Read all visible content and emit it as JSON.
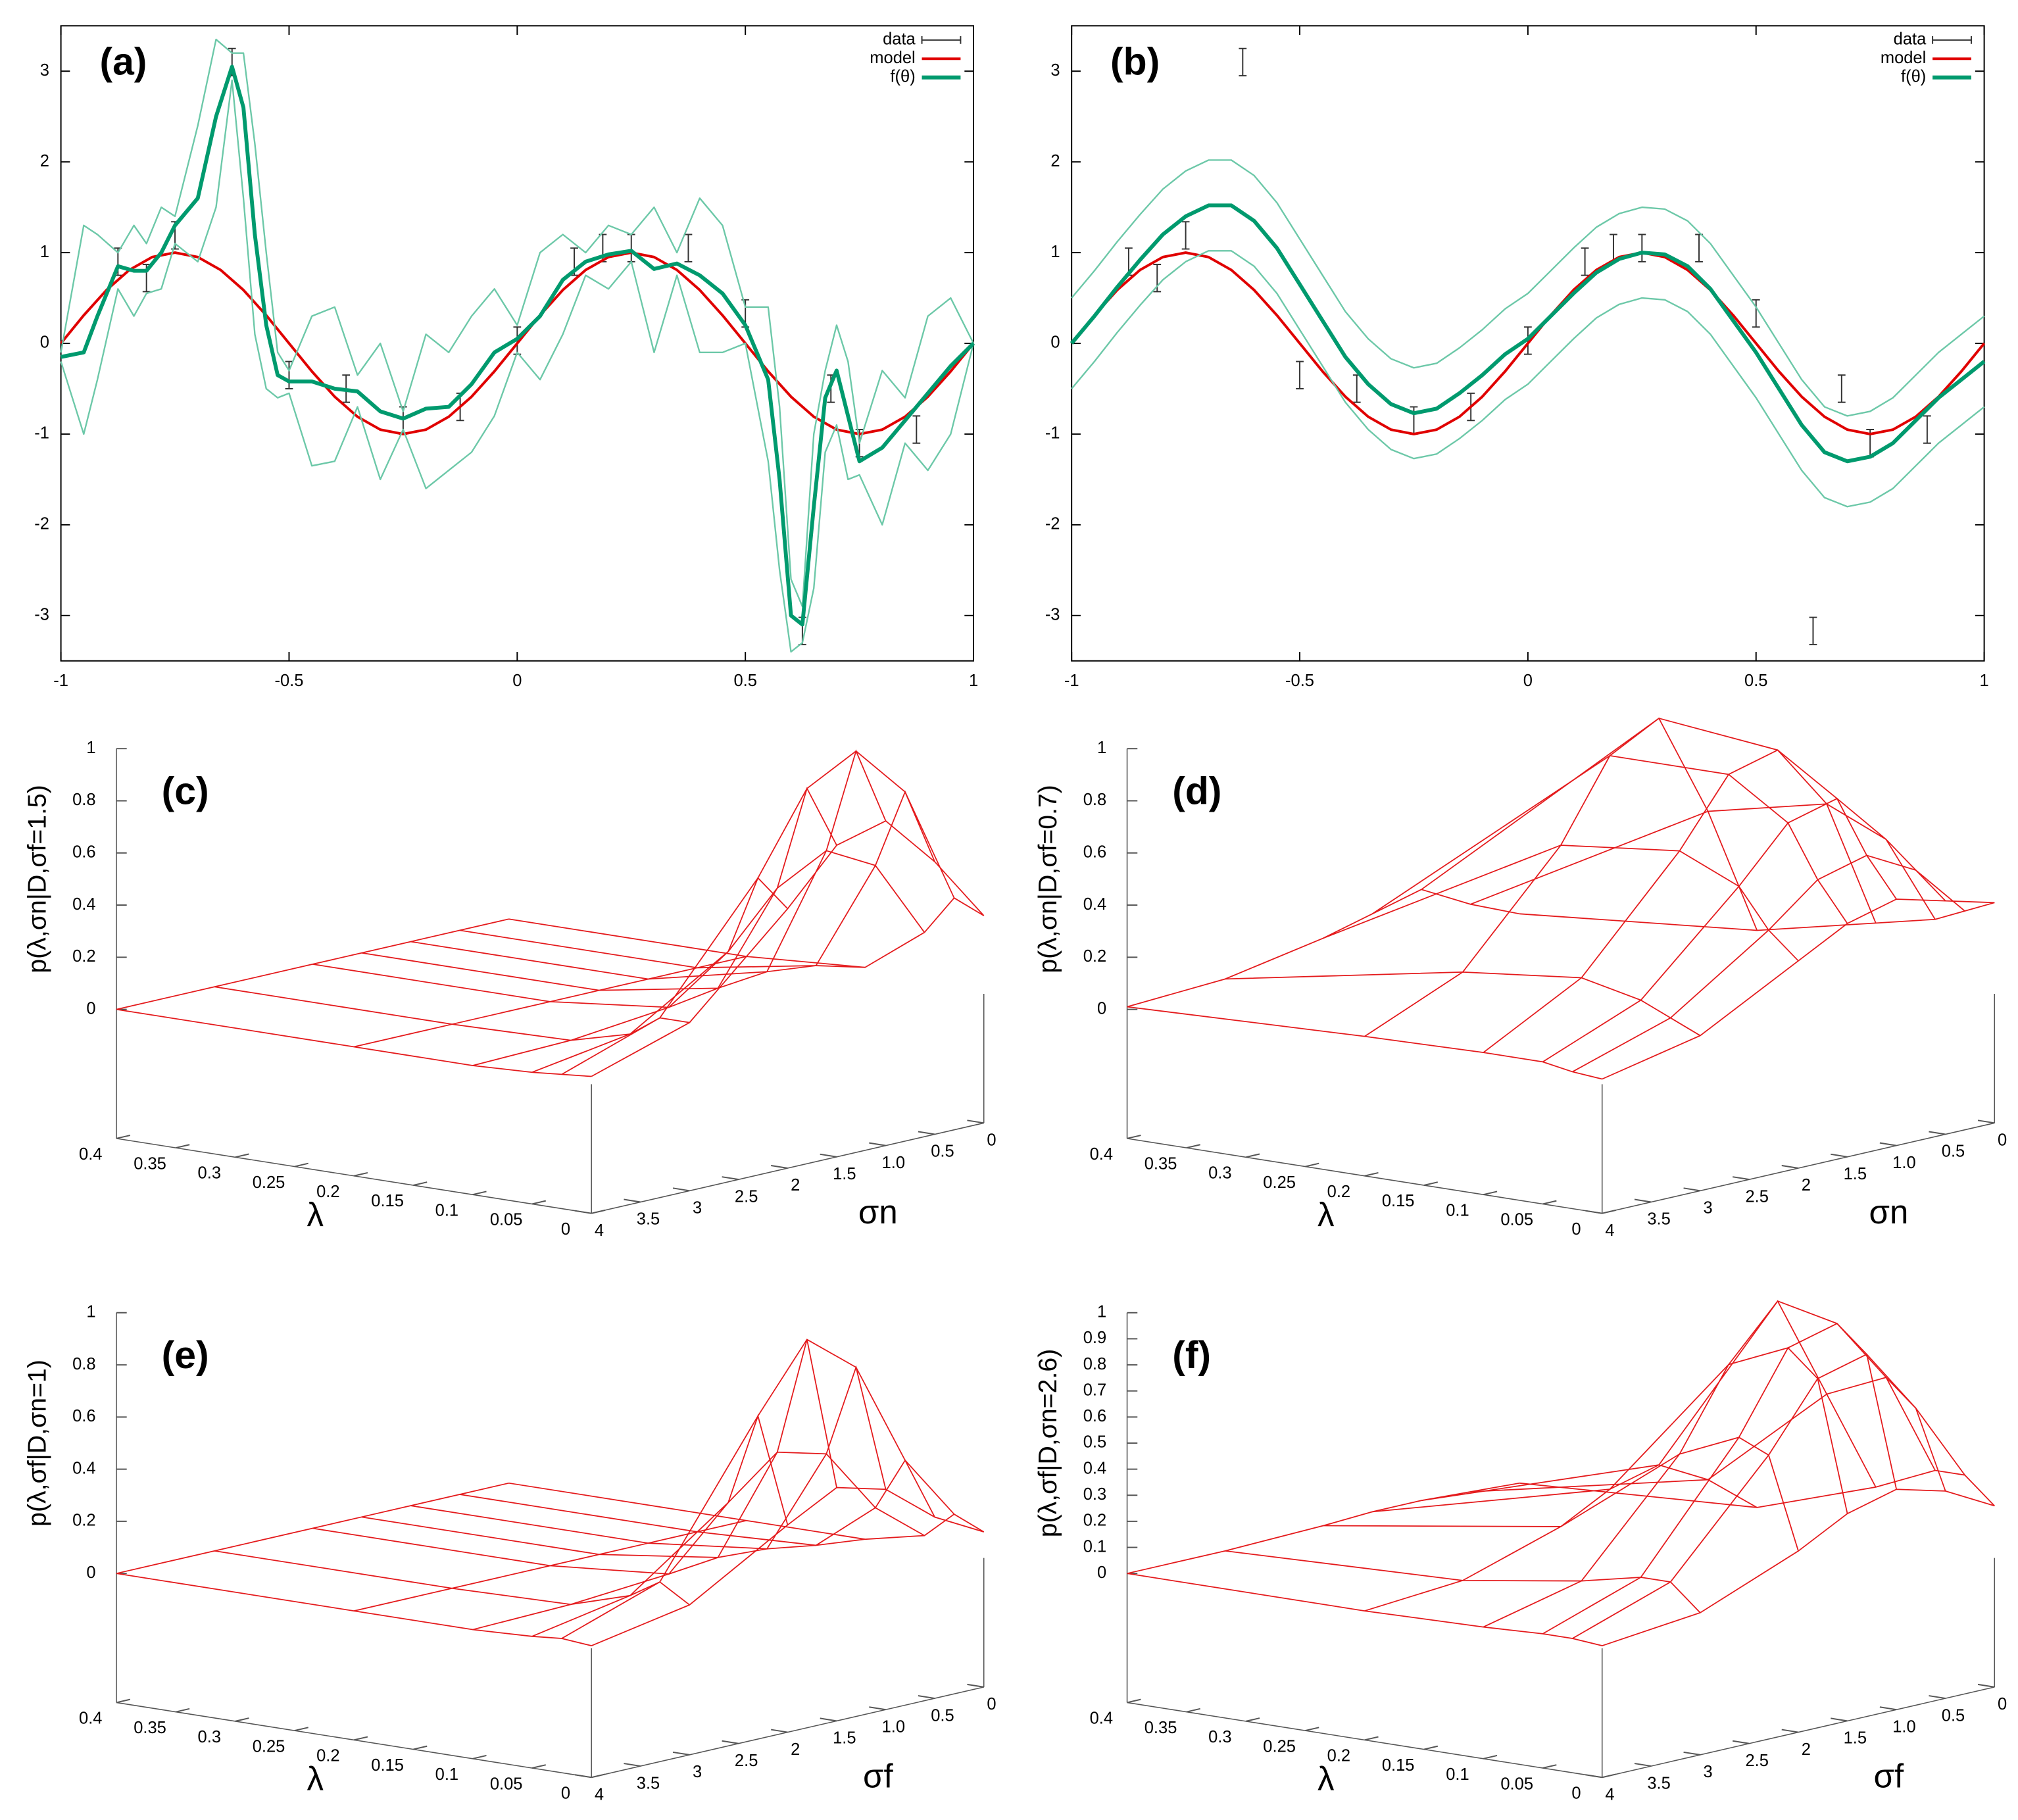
{
  "chart_data": [
    {
      "type": "line",
      "label": "(a)",
      "xlim": [
        -1,
        1
      ],
      "ylim": [
        -3.5,
        3.5
      ],
      "xticks": [
        -1,
        -0.5,
        0,
        0.5,
        1
      ],
      "yticks": [
        -3,
        -2,
        -1,
        0,
        1,
        2,
        3
      ],
      "series": [
        {
          "name": "data",
          "color": "#333333",
          "error": 0.15,
          "x": [
            -0.875,
            -0.8125,
            -0.75,
            -0.625,
            -0.5,
            -0.375,
            -0.25,
            -0.125,
            0,
            0.125,
            0.1875,
            0.25,
            0.375,
            0.5,
            0.625,
            0.6875,
            0.75,
            0.875
          ],
          "values": [
            0.9,
            0.72,
            1.19,
            3.1,
            -0.35,
            -0.5,
            -0.85,
            -0.7,
            0.03,
            0.9,
            1.05,
            1.05,
            1.05,
            0.33,
            -3.17,
            -0.5,
            -1.1,
            -0.95
          ]
        },
        {
          "name": "model",
          "color": "#e00000",
          "x": [
            -1,
            -0.95,
            -0.9,
            -0.85,
            -0.8,
            -0.75,
            -0.7,
            -0.65,
            -0.6,
            -0.55,
            -0.5,
            -0.45,
            -0.4,
            -0.35,
            -0.3,
            -0.25,
            -0.2,
            -0.15,
            -0.1,
            -0.05,
            0,
            0.05,
            0.1,
            0.15,
            0.2,
            0.25,
            0.3,
            0.35,
            0.4,
            0.45,
            0.5,
            0.55,
            0.6,
            0.65,
            0.7,
            0.75,
            0.8,
            0.85,
            0.9,
            0.95,
            1
          ],
          "values": [
            0,
            0.309,
            0.588,
            0.809,
            0.951,
            1,
            0.951,
            0.809,
            0.588,
            0.309,
            0,
            -0.309,
            -0.588,
            -0.809,
            -0.951,
            -1,
            -0.951,
            -0.809,
            -0.588,
            -0.309,
            0,
            0.309,
            0.588,
            0.809,
            0.951,
            1,
            0.951,
            0.809,
            0.588,
            0.309,
            0,
            -0.309,
            -0.588,
            -0.809,
            -0.951,
            -1,
            -0.951,
            -0.809,
            -0.588,
            -0.309,
            0
          ]
        },
        {
          "name": "f(θ)",
          "color": "#009a6e",
          "band_color": "#6cc8a8",
          "x": [
            -1,
            -0.95,
            -0.92,
            -0.875,
            -0.84,
            -0.8125,
            -0.78,
            -0.75,
            -0.7,
            -0.66,
            -0.625,
            -0.6,
            -0.575,
            -0.55,
            -0.525,
            -0.5,
            -0.45,
            -0.4,
            -0.35,
            -0.3,
            -0.25,
            -0.2,
            -0.15,
            -0.1,
            -0.05,
            0,
            0.05,
            0.1,
            0.15,
            0.2,
            0.25,
            0.3,
            0.35,
            0.4,
            0.45,
            0.5,
            0.55,
            0.575,
            0.6,
            0.625,
            0.65,
            0.675,
            0.7,
            0.725,
            0.75,
            0.8,
            0.85,
            0.9,
            0.95,
            1
          ],
          "values": [
            -0.15,
            -0.1,
            0.3,
            0.85,
            0.8,
            0.8,
            1.0,
            1.3,
            1.6,
            2.5,
            3.05,
            2.6,
            1.2,
            0.2,
            -0.35,
            -0.42,
            -0.42,
            -0.5,
            -0.53,
            -0.75,
            -0.83,
            -0.72,
            -0.7,
            -0.45,
            -0.1,
            0.05,
            0.3,
            0.7,
            0.9,
            0.98,
            1.02,
            0.82,
            0.88,
            0.75,
            0.55,
            0.2,
            -0.4,
            -1.5,
            -3.0,
            -3.1,
            -1.8,
            -0.6,
            -0.3,
            -0.8,
            -1.3,
            -1.15,
            -0.85,
            -0.55,
            -0.25,
            0
          ],
          "upper": [
            -0.1,
            1.3,
            1.2,
            1.0,
            1.3,
            1.1,
            1.5,
            1.4,
            2.4,
            3.35,
            3.2,
            3.2,
            2.2,
            1.0,
            -0.1,
            -0.3,
            0.3,
            0.4,
            -0.35,
            0.0,
            -0.75,
            0.1,
            -0.1,
            0.3,
            0.6,
            0.2,
            1.0,
            1.2,
            1.0,
            1.3,
            1.2,
            1.5,
            1.0,
            1.6,
            1.3,
            0.4,
            0.4,
            -0.7,
            -2.6,
            -2.9,
            -1.0,
            -0.3,
            0.2,
            -0.2,
            -1.1,
            -0.3,
            -0.6,
            0.3,
            0.5,
            0
          ],
          "lower": [
            -0.2,
            -1.0,
            -0.4,
            0.6,
            0.3,
            0.55,
            0.6,
            1.1,
            0.9,
            1.5,
            2.9,
            1.6,
            0.1,
            -0.5,
            -0.6,
            -0.55,
            -1.35,
            -1.3,
            -0.7,
            -1.5,
            -0.95,
            -1.6,
            -1.4,
            -1.2,
            -0.8,
            -0.1,
            -0.4,
            0.1,
            0.75,
            0.6,
            0.9,
            -0.1,
            0.75,
            -0.1,
            -0.1,
            0.0,
            -1.3,
            -2.5,
            -3.4,
            -3.3,
            -2.7,
            -1.2,
            -0.9,
            -1.5,
            -1.45,
            -2.0,
            -1.1,
            -1.4,
            -1.0,
            0
          ]
        }
      ]
    },
    {
      "type": "line",
      "label": "(b)",
      "xlim": [
        -1,
        1
      ],
      "ylim": [
        -3.5,
        3.5
      ],
      "xticks": [
        -1,
        -0.5,
        0,
        0.5,
        1
      ],
      "yticks": [
        -3,
        -2,
        -1,
        0,
        1,
        2,
        3
      ],
      "series": [
        {
          "name": "data",
          "color": "#333333",
          "error": 0.15,
          "x": [
            -0.875,
            -0.8125,
            -0.75,
            -0.625,
            -0.5,
            -0.375,
            -0.25,
            -0.125,
            0,
            0.125,
            0.1875,
            0.25,
            0.375,
            0.5,
            0.625,
            0.6875,
            0.75,
            0.875
          ],
          "values": [
            0.9,
            0.72,
            1.19,
            3.1,
            -0.35,
            -0.5,
            -0.85,
            -0.7,
            0.03,
            0.9,
            1.05,
            1.05,
            1.05,
            0.33,
            -3.17,
            -0.5,
            -1.1,
            -0.95
          ]
        },
        {
          "name": "model",
          "color": "#e00000",
          "x": [
            -1,
            -0.95,
            -0.9,
            -0.85,
            -0.8,
            -0.75,
            -0.7,
            -0.65,
            -0.6,
            -0.55,
            -0.5,
            -0.45,
            -0.4,
            -0.35,
            -0.3,
            -0.25,
            -0.2,
            -0.15,
            -0.1,
            -0.05,
            0,
            0.05,
            0.1,
            0.15,
            0.2,
            0.25,
            0.3,
            0.35,
            0.4,
            0.45,
            0.5,
            0.55,
            0.6,
            0.65,
            0.7,
            0.75,
            0.8,
            0.85,
            0.9,
            0.95,
            1
          ],
          "values": [
            0,
            0.309,
            0.588,
            0.809,
            0.951,
            1,
            0.951,
            0.809,
            0.588,
            0.309,
            0,
            -0.309,
            -0.588,
            -0.809,
            -0.951,
            -1,
            -0.951,
            -0.809,
            -0.588,
            -0.309,
            0,
            0.309,
            0.588,
            0.809,
            0.951,
            1,
            0.951,
            0.809,
            0.588,
            0.309,
            0,
            -0.309,
            -0.588,
            -0.809,
            -0.951,
            -1,
            -0.951,
            -0.809,
            -0.588,
            -0.309,
            0
          ]
        },
        {
          "name": "f(θ)",
          "color": "#009a6e",
          "band_color": "#6cc8a8",
          "x": [
            -1,
            -0.95,
            -0.9,
            -0.85,
            -0.8,
            -0.75,
            -0.7,
            -0.65,
            -0.6,
            -0.55,
            -0.5,
            -0.45,
            -0.4,
            -0.35,
            -0.3,
            -0.25,
            -0.2,
            -0.15,
            -0.1,
            -0.05,
            0,
            0.05,
            0.1,
            0.15,
            0.2,
            0.25,
            0.3,
            0.35,
            0.4,
            0.45,
            0.5,
            0.55,
            0.6,
            0.65,
            0.7,
            0.75,
            0.8,
            0.85,
            0.9,
            0.95,
            1
          ],
          "values": [
            0,
            0.3,
            0.62,
            0.92,
            1.2,
            1.4,
            1.52,
            1.52,
            1.35,
            1.05,
            0.65,
            0.25,
            -0.15,
            -0.45,
            -0.67,
            -0.77,
            -0.72,
            -0.55,
            -0.35,
            -0.12,
            0.05,
            0.3,
            0.55,
            0.78,
            0.93,
            1,
            0.98,
            0.85,
            0.6,
            0.25,
            -0.1,
            -0.5,
            -0.9,
            -1.2,
            -1.3,
            -1.25,
            -1.1,
            -0.85,
            -0.6,
            -0.4,
            -0.2
          ],
          "upper": [
            0.5,
            0.8,
            1.12,
            1.42,
            1.7,
            1.9,
            2.02,
            2.02,
            1.85,
            1.55,
            1.15,
            0.75,
            0.35,
            0.05,
            -0.17,
            -0.27,
            -0.22,
            -0.05,
            0.15,
            0.38,
            0.55,
            0.8,
            1.05,
            1.28,
            1.43,
            1.5,
            1.48,
            1.35,
            1.1,
            0.75,
            0.4,
            0,
            -0.4,
            -0.7,
            -0.8,
            -0.75,
            -0.6,
            -0.35,
            -0.1,
            0.1,
            0.3
          ],
          "lower": [
            -0.5,
            -0.2,
            0.12,
            0.42,
            0.7,
            0.9,
            1.02,
            1.02,
            0.85,
            0.55,
            0.15,
            -0.25,
            -0.65,
            -0.95,
            -1.17,
            -1.27,
            -1.22,
            -1.05,
            -0.85,
            -0.62,
            -0.45,
            -0.2,
            0.05,
            0.28,
            0.43,
            0.5,
            0.48,
            0.35,
            0.1,
            -0.25,
            -0.6,
            -1,
            -1.4,
            -1.7,
            -1.8,
            -1.75,
            -1.6,
            -1.35,
            -1.1,
            -0.9,
            -0.7
          ]
        }
      ]
    },
    {
      "type": "surface3d",
      "label": "(c)",
      "z_label": "p(λ,σn|D,σf=1.5)",
      "x_label": "λ",
      "y_label": "σn",
      "color": "#e41a1c",
      "xlim": [
        0,
        0.4
      ],
      "ylim": [
        0,
        4
      ],
      "zlim": [
        0,
        1
      ],
      "xticks": [
        0,
        0.05,
        0.1,
        0.15,
        0.2,
        0.25,
        0.3,
        0.35,
        0.4
      ],
      "yticks": [
        0,
        0.5,
        {
          "value": 1,
          "label": "1.0"
        },
        1.5,
        2,
        2.5,
        3,
        3.5,
        4
      ],
      "zticks": [
        0,
        0.2,
        0.4,
        0.6,
        0.8,
        1
      ],
      "lambda": [
        0,
        0.025,
        0.05,
        0.1,
        0.2,
        0.4
      ],
      "sigma": [
        0,
        0.5,
        1,
        1.5,
        2,
        3,
        4
      ],
      "z": [
        [
          0.3,
          0.55,
          0.75,
          0.7,
          0.5,
          0.15,
          0.03
        ],
        [
          0.35,
          0.8,
          1.0,
          0.9,
          0.6,
          0.15,
          0.02
        ],
        [
          0.2,
          0.5,
          0.6,
          0.5,
          0.3,
          0.07,
          0.01
        ],
        [
          0.03,
          0.08,
          0.1,
          0.08,
          0.05,
          0.01,
          0
        ],
        [
          0,
          0,
          0,
          0,
          0,
          0,
          0
        ],
        [
          0,
          0,
          0,
          0,
          0,
          0,
          0
        ]
      ]
    },
    {
      "type": "surface3d",
      "label": "(d)",
      "z_label": "p(λ,σn|D,σf=0.7)",
      "x_label": "λ",
      "y_label": "σn",
      "color": "#e41a1c",
      "xlim": [
        0,
        0.4
      ],
      "ylim": [
        0,
        4
      ],
      "zlim": [
        0,
        1
      ],
      "xticks": [
        0,
        0.05,
        0.1,
        0.15,
        0.2,
        0.25,
        0.3,
        0.35,
        0.4
      ],
      "yticks": [
        0,
        0.5,
        {
          "value": 1,
          "label": "1.0"
        },
        1.5,
        2,
        2.5,
        3,
        3.5,
        4
      ],
      "zticks": [
        0,
        0.2,
        0.4,
        0.6,
        0.8,
        1
      ],
      "lambda": [
        0,
        0.025,
        0.05,
        0.1,
        0.2,
        0.4
      ],
      "sigma": [
        0,
        0.5,
        1,
        1.5,
        2,
        3,
        4
      ],
      "z": [
        [
          0.35,
          0.4,
          0.45,
          0.4,
          0.3,
          0.1,
          0.02
        ],
        [
          0.3,
          0.5,
          0.6,
          0.55,
          0.4,
          0.15,
          0.03
        ],
        [
          0.25,
          0.6,
          0.8,
          0.75,
          0.55,
          0.2,
          0.05
        ],
        [
          0.2,
          0.7,
          0.95,
          0.9,
          0.65,
          0.25,
          0.05
        ],
        [
          0.1,
          0.6,
          1.0,
          0.9,
          0.6,
          0.2,
          0.04
        ],
        [
          0.02,
          0.1,
          0.2,
          0.15,
          0.1,
          0.03,
          0.01
        ]
      ]
    },
    {
      "type": "surface3d",
      "label": "(e)",
      "z_label": "p(λ,σf|D,σn=1)",
      "x_label": "λ",
      "y_label": "σf",
      "color": "#e41a1c",
      "xlim": [
        0,
        0.4
      ],
      "ylim": [
        0,
        4
      ],
      "zlim": [
        0,
        1
      ],
      "xticks": [
        0,
        0.05,
        0.1,
        0.15,
        0.2,
        0.25,
        0.3,
        0.35,
        0.4
      ],
      "yticks": [
        0,
        0.5,
        {
          "value": 1,
          "label": "1.0"
        },
        1.5,
        2,
        2.5,
        3,
        3.5,
        4
      ],
      "zticks": [
        0,
        0.2,
        0.4,
        0.6,
        0.8,
        1
      ],
      "lambda": [
        0,
        0.025,
        0.05,
        0.1,
        0.2,
        0.4
      ],
      "sigma": [
        0,
        0.5,
        1,
        1.5,
        2,
        3,
        4
      ],
      "z": [
        [
          0.1,
          0.2,
          0.35,
          0.4,
          0.3,
          0.08,
          0.01
        ],
        [
          0.15,
          0.4,
          0.8,
          0.95,
          0.7,
          0.15,
          0.02
        ],
        [
          0.05,
          0.2,
          0.45,
          0.5,
          0.35,
          0.08,
          0.01
        ],
        [
          0,
          0.02,
          0.05,
          0.06,
          0.04,
          0.01,
          0
        ],
        [
          0,
          0,
          0,
          0,
          0,
          0,
          0
        ],
        [
          0,
          0,
          0,
          0,
          0,
          0,
          0
        ]
      ]
    },
    {
      "type": "surface3d",
      "label": "(f)",
      "z_label": "p(λ,σf|D,σn=2.6)",
      "x_label": "λ",
      "y_label": "σf",
      "color": "#e41a1c",
      "xlim": [
        0,
        0.4
      ],
      "ylim": [
        0,
        4
      ],
      "zlim": [
        0,
        1
      ],
      "xticks": [
        0,
        0.05,
        0.1,
        0.15,
        0.2,
        0.25,
        0.3,
        0.35,
        0.4
      ],
      "yticks": [
        0,
        0.5,
        {
          "value": 1,
          "label": "1.0"
        },
        1.5,
        2,
        2.5,
        3,
        3.5,
        4
      ],
      "zticks": [
        0,
        0.1,
        0.2,
        0.3,
        0.4,
        0.5,
        0.6,
        0.7,
        0.8,
        0.9,
        1
      ],
      "lambda": [
        0,
        0.025,
        0.05,
        0.1,
        0.2,
        0.4
      ],
      "sigma": [
        0,
        0.5,
        1,
        1.5,
        2,
        3,
        4
      ],
      "z": [
        [
          0.2,
          0.3,
          0.35,
          0.3,
          0.2,
          0.05,
          0.01
        ],
        [
          0.3,
          0.6,
          0.85,
          0.8,
          0.55,
          0.15,
          0.02
        ],
        [
          0.3,
          0.7,
          0.95,
          0.9,
          0.6,
          0.15,
          0.02
        ],
        [
          0.2,
          0.6,
          1.0,
          0.8,
          0.5,
          0.1,
          0.01
        ],
        [
          0.05,
          0.2,
          0.3,
          0.25,
          0.15,
          0.03,
          0
        ],
        [
          0,
          0.01,
          0.02,
          0.02,
          0.01,
          0,
          0
        ]
      ]
    }
  ]
}
